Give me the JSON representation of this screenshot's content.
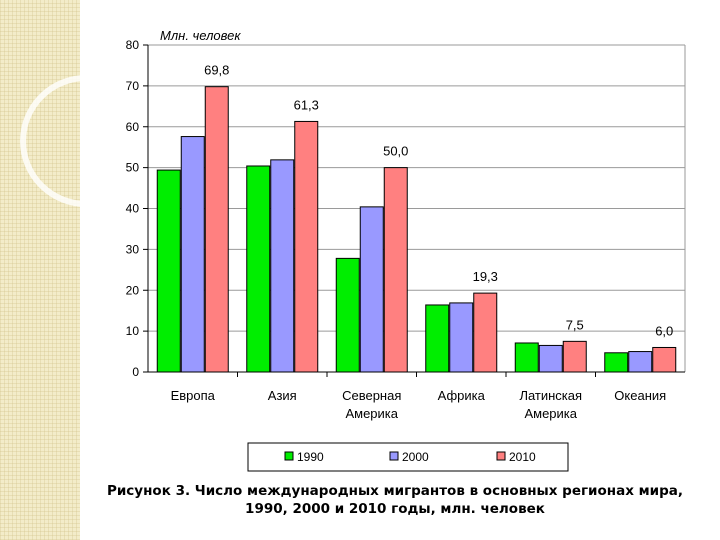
{
  "chart_data": {
    "type": "bar",
    "title": "",
    "ylabel": "Млн. человек",
    "xlabel": "",
    "ylim": [
      0,
      80
    ],
    "yticks": [
      0,
      10,
      20,
      30,
      40,
      50,
      60,
      70,
      80
    ],
    "grid": true,
    "legend_position": "bottom",
    "categories": [
      [
        "Европа"
      ],
      [
        "Азия"
      ],
      [
        "Северная",
        "Америка"
      ],
      [
        "Африка"
      ],
      [
        "Латинская",
        "Америка"
      ],
      [
        "Океания"
      ]
    ],
    "series": [
      {
        "name": "1990",
        "color": "#00ee00",
        "values": [
          49.4,
          50.4,
          27.8,
          16.4,
          7.1,
          4.7
        ]
      },
      {
        "name": "2000",
        "color": "#9999ff",
        "values": [
          57.6,
          51.9,
          40.4,
          16.9,
          6.5,
          5.0
        ]
      },
      {
        "name": "2010",
        "color": "#ff8080",
        "values": [
          69.8,
          61.3,
          50.0,
          19.3,
          7.5,
          6.0
        ],
        "data_labels": [
          "69,8",
          "61,3",
          "50,0",
          "19,3",
          "7,5",
          "6,0"
        ]
      }
    ]
  },
  "caption": {
    "line1": "Рисунок 3. Число международных мигрантов в основных регионах мира,",
    "line2": "1990, 2000 и 2010 годы, млн. человек"
  }
}
